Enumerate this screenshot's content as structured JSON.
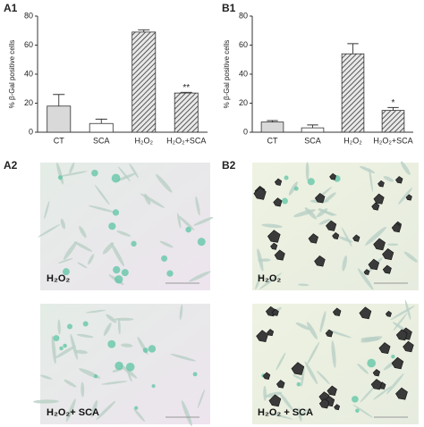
{
  "chart_data": [
    {
      "type": "bar",
      "panel_label": "A1",
      "ylabel": "% β-Gal positive cells",
      "categories": [
        "CT",
        "SCA",
        "H₂O₂",
        "H₂O₂+SCA"
      ],
      "values": [
        18,
        6,
        69,
        27
      ],
      "errors": [
        8,
        3,
        1.5,
        0.5
      ],
      "significance": [
        null,
        null,
        null,
        "**"
      ],
      "colors": [
        "#d9d9d9",
        "#ffffff",
        "#9a9a9a",
        "#9a9a9a"
      ],
      "hatch": [
        false,
        false,
        true,
        true
      ],
      "ylim": [
        0,
        80
      ],
      "yticks": [
        0,
        20,
        40,
        60,
        80
      ]
    },
    {
      "type": "bar",
      "panel_label": "B1",
      "ylabel": "% β-Gal positive cells",
      "categories": [
        "CT",
        "SCA",
        "H₂O₂",
        "H₂O₂+SCA"
      ],
      "values": [
        7,
        3,
        54,
        15
      ],
      "errors": [
        1,
        2,
        7,
        2
      ],
      "significance": [
        null,
        null,
        null,
        "*"
      ],
      "colors": [
        "#d9d9d9",
        "#ffffff",
        "#9a9a9a",
        "#9a9a9a"
      ],
      "hatch": [
        false,
        false,
        true,
        true
      ],
      "ylim": [
        0,
        80
      ],
      "yticks": [
        0,
        20,
        40,
        60,
        80
      ]
    }
  ],
  "panels": {
    "a2": {
      "label": "A2",
      "captions": [
        "H₂O₂",
        "H₂O₂+ SCA"
      ]
    },
    "b2": {
      "label": "B2",
      "captions": [
        "H₂O₂",
        "H₂O₂ + SCA"
      ]
    }
  }
}
